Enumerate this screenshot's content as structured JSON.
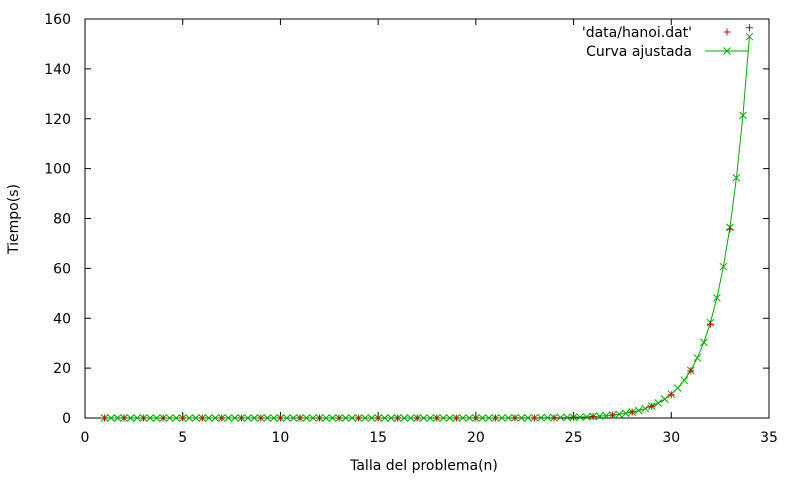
{
  "chart_data": {
    "type": "scatter",
    "title": "",
    "xlabel": "Talla del problema(n)",
    "ylabel": "Tiempo(s)",
    "xlim": [
      0,
      35
    ],
    "ylim": [
      0,
      160
    ],
    "xticks": [
      0,
      5,
      10,
      15,
      20,
      25,
      30,
      35
    ],
    "yticks": [
      0,
      20,
      40,
      60,
      80,
      100,
      120,
      140,
      160
    ],
    "x_tick_labels": [
      "0",
      "5",
      "10",
      "15",
      "20",
      "25",
      "30",
      "35"
    ],
    "y_tick_labels": [
      "0",
      "20",
      "40",
      "60",
      "80",
      "100",
      "120",
      "140",
      "160"
    ],
    "grid": false,
    "legend_position": "top-right",
    "series": [
      {
        "name": "'data/hanoi.dat'",
        "style": "points",
        "marker": "plus",
        "color": "#cc0000",
        "x": [
          1,
          2,
          3,
          4,
          5,
          6,
          7,
          8,
          9,
          10,
          11,
          12,
          13,
          14,
          15,
          16,
          17,
          18,
          19,
          20,
          21,
          22,
          23,
          24,
          25,
          26,
          27,
          28,
          29,
          30,
          31,
          32,
          33,
          34
        ],
        "y": [
          0,
          0,
          0,
          0,
          0,
          0,
          0,
          0,
          0,
          0,
          0,
          0,
          0,
          0,
          0,
          0,
          0,
          0,
          0,
          0,
          0,
          0,
          0,
          0,
          0.3,
          0.6,
          1.2,
          2.4,
          4.7,
          9.3,
          18.9,
          37.6,
          75.7,
          156.5
        ]
      },
      {
        "name": "Curva ajustada",
        "style": "linespoints",
        "marker": "cross",
        "color": "#00aa00",
        "function": "a*2^x",
        "a": 8.9e-09,
        "x_range": [
          1,
          34
        ],
        "samples": 100
      }
    ]
  }
}
